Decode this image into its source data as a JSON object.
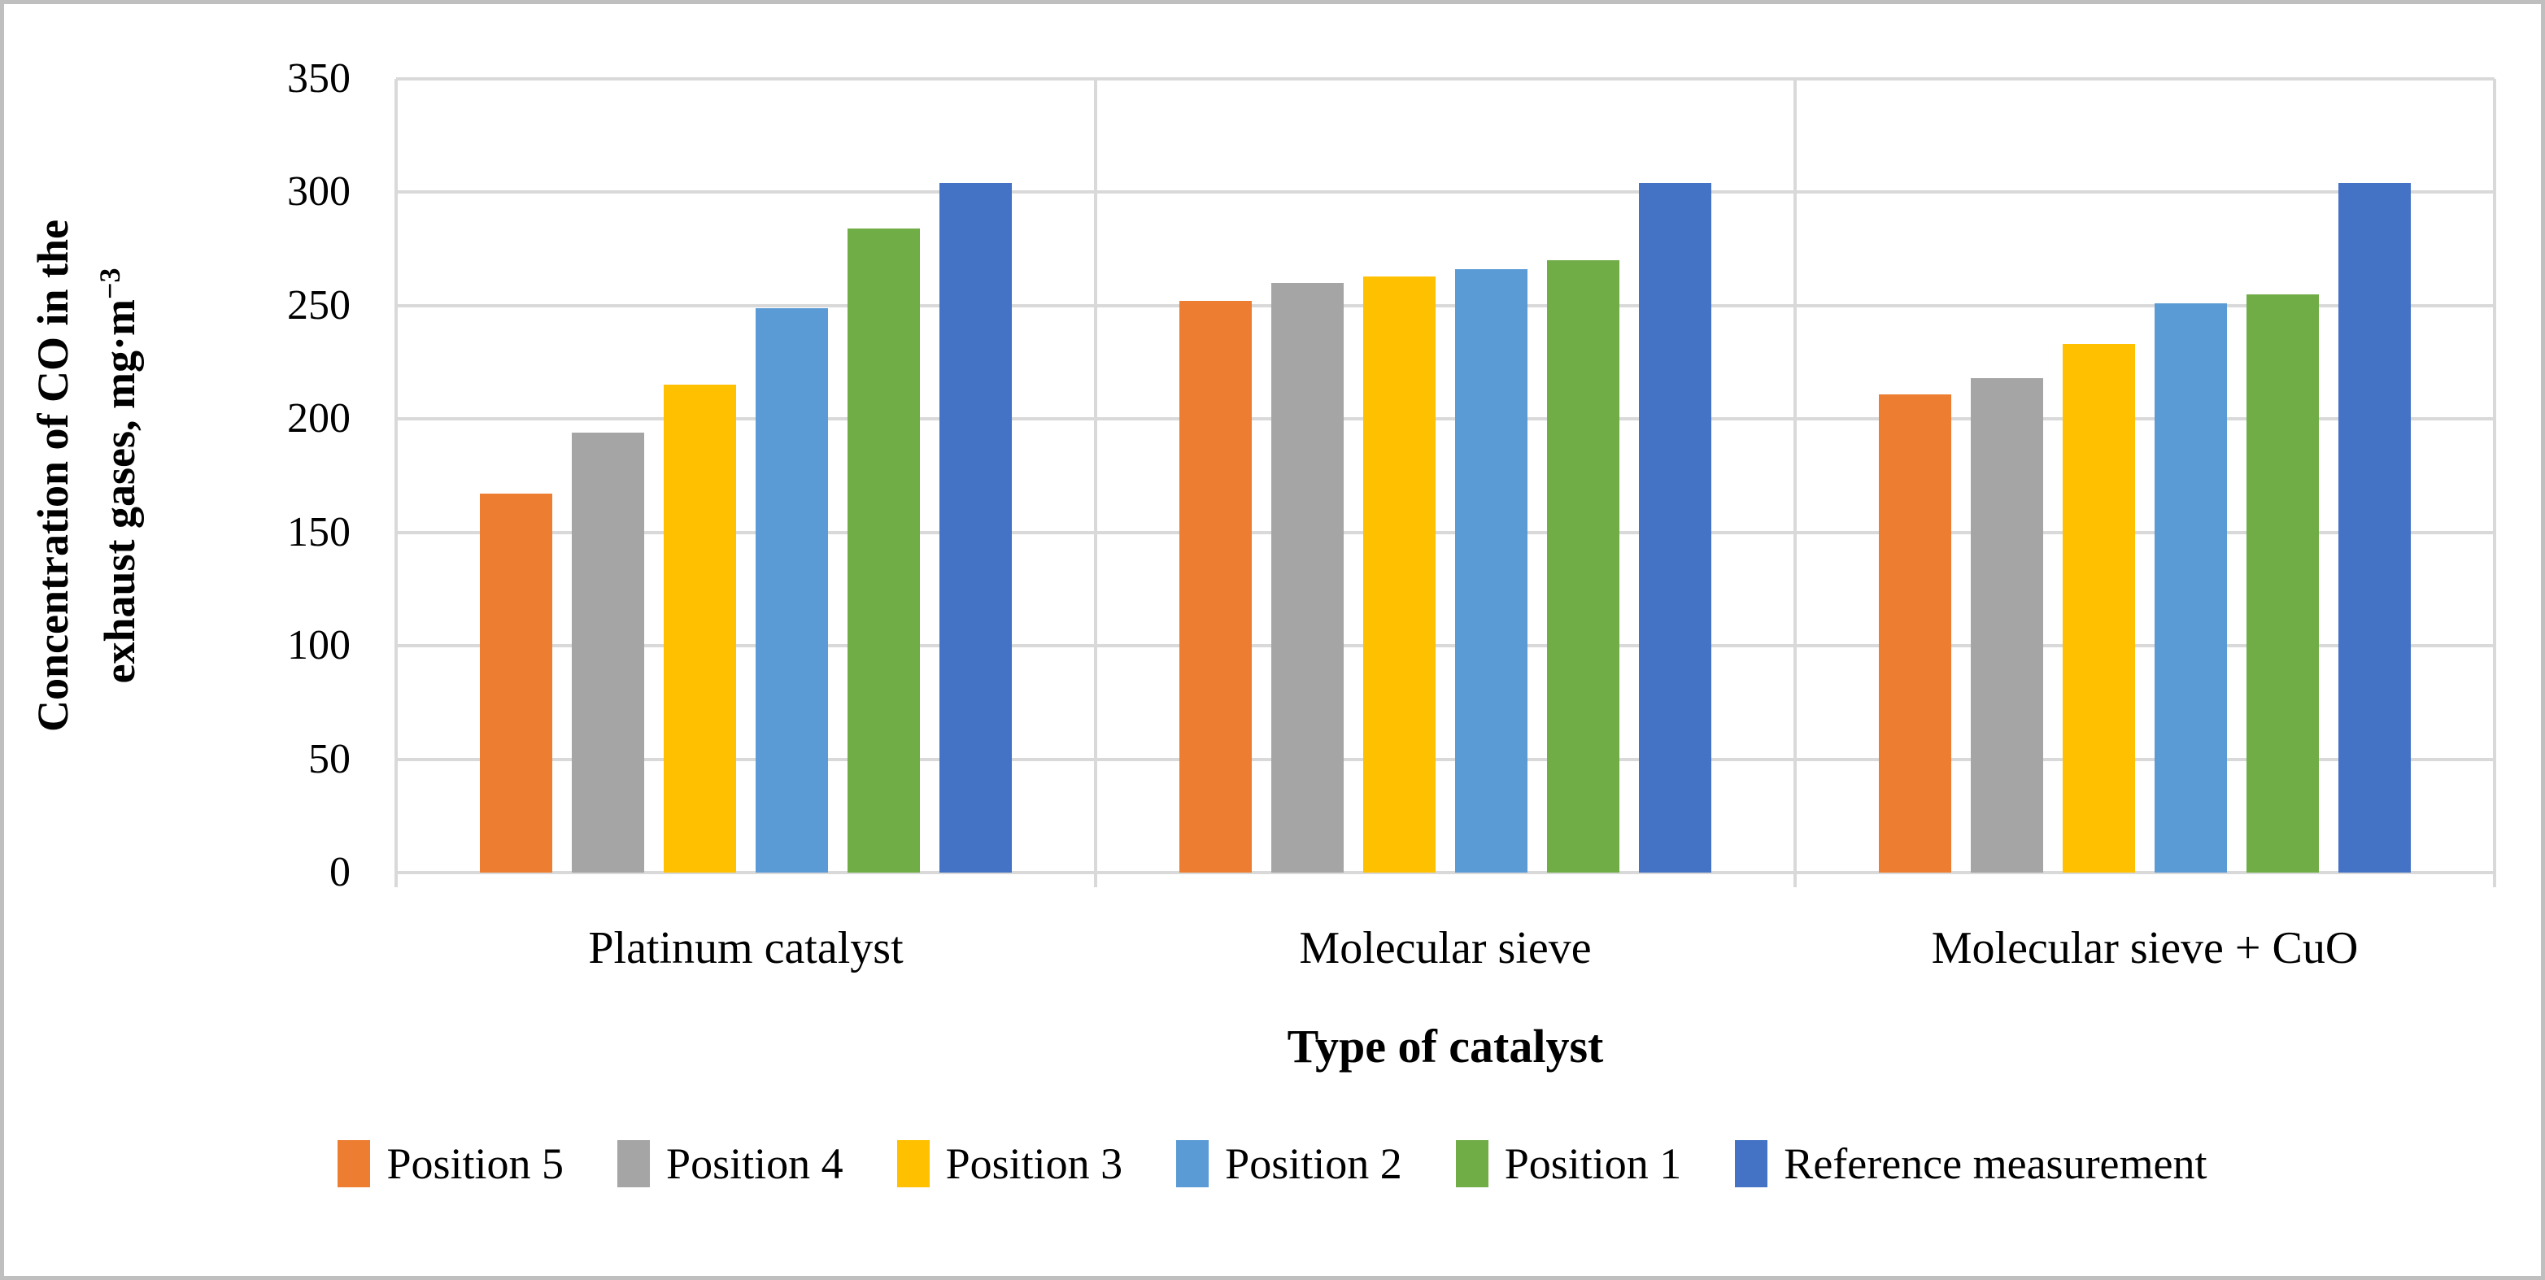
{
  "figure": {
    "background_color": "#FFFFFF",
    "border_color": "#BFBFBF"
  },
  "chart_data": {
    "type": "bar",
    "title": "",
    "xlabel": "Type of catalyst",
    "ylabel_line1": "Concentration of CO in the",
    "ylabel_line2_prefix": "exhaust gases, mg·m",
    "ylabel_exponent": "−3",
    "ylim": [
      0,
      350
    ],
    "y_ticks": [
      350,
      300,
      250,
      200,
      150,
      100,
      50,
      0
    ],
    "grid": true,
    "gridline_color": "#D9D9D9",
    "legend_position": "bottom",
    "categories": [
      "Platinum catalyst",
      "Molecular sieve",
      "Molecular sieve + CuO"
    ],
    "series": [
      {
        "name": "Position 5",
        "color": "#ED7D31",
        "values": [
          167,
          252,
          211
        ]
      },
      {
        "name": "Position 4",
        "color": "#A5A5A5",
        "values": [
          194,
          260,
          218
        ]
      },
      {
        "name": "Position 3",
        "color": "#FFC000",
        "values": [
          215,
          263,
          233
        ]
      },
      {
        "name": "Position 2",
        "color": "#5B9BD5",
        "values": [
          249,
          266,
          251
        ]
      },
      {
        "name": "Position 1",
        "color": "#70AD47",
        "values": [
          284,
          270,
          255
        ]
      },
      {
        "name": "Reference measurement",
        "color": "#4472C4",
        "values": [
          304,
          304,
          304
        ]
      }
    ]
  }
}
